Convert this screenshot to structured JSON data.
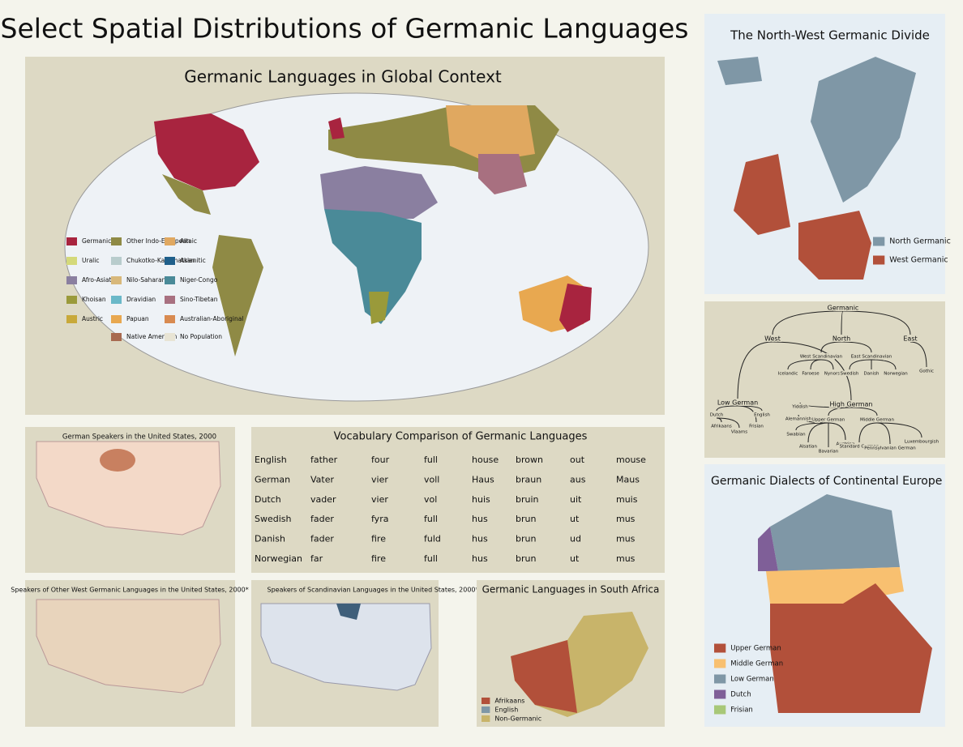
{
  "title": "Select Spatial Distributions of Germanic Languages",
  "global": {
    "title": "Germanic Languages in Global Context",
    "legend": [
      {
        "label": "Germanic",
        "color": "#a8243f"
      },
      {
        "label": "Uralic",
        "color": "#d4d97a"
      },
      {
        "label": "Afro-Asiatic",
        "color": "#8a7fa0"
      },
      {
        "label": "Khoisan",
        "color": "#9a9a3a"
      },
      {
        "label": "Austric",
        "color": "#c8a93a"
      },
      {
        "label": "Other Indo-European",
        "color": "#8f8a45"
      },
      {
        "label": "Chukotko-Kamchatkan",
        "color": "#b8cccc"
      },
      {
        "label": "Nilo-Saharan",
        "color": "#d8b87a"
      },
      {
        "label": "Dravidian",
        "color": "#6ab8c8"
      },
      {
        "label": "Papuan",
        "color": "#e8a850"
      },
      {
        "label": "Native American",
        "color": "#a86a50"
      },
      {
        "label": "Altaic",
        "color": "#e0a860"
      },
      {
        "label": "Asianitic",
        "color": "#1f5f8a"
      },
      {
        "label": "Niger-Congo",
        "color": "#4a8a98"
      },
      {
        "label": "Sino-Tibetan",
        "color": "#a87080"
      },
      {
        "label": "Australian-Aboriginal",
        "color": "#d88a50"
      },
      {
        "label": "No Population",
        "color": "#e8e4d4"
      }
    ]
  },
  "us_german": {
    "title": "German Speakers in the United States, 2000"
  },
  "us_west": {
    "title": "Speakers of Other West Germanic Languages in the United States, 2000*"
  },
  "us_scand": {
    "title": "Speakers of Scandinavian Languages in the United States, 2000*"
  },
  "vocab": {
    "title": "Vocabulary Comparison of Germanic Languages",
    "rows": [
      [
        "English",
        "father",
        "four",
        "full",
        "house",
        "brown",
        "out",
        "mouse"
      ],
      [
        "German",
        "Vater",
        "vier",
        "voll",
        "Haus",
        "braun",
        "aus",
        "Maus"
      ],
      [
        "Dutch",
        "vader",
        "vier",
        "vol",
        "huis",
        "bruin",
        "uit",
        "muis"
      ],
      [
        "Swedish",
        "fader",
        "fyra",
        "full",
        "hus",
        "brun",
        "ut",
        "mus"
      ],
      [
        "Danish",
        "fader",
        "fire",
        "fuld",
        "hus",
        "brun",
        "ud",
        "mus"
      ],
      [
        "Norwegian",
        "far",
        "fire",
        "full",
        "hus",
        "brun",
        "ut",
        "mus"
      ]
    ]
  },
  "south_africa": {
    "title": "Germanic Languages in South Africa",
    "legend": [
      {
        "label": "Afrikaans",
        "color": "#b2503a"
      },
      {
        "label": "English",
        "color": "#7f97a6"
      },
      {
        "label": "Non-Germanic",
        "color": "#c8b46a"
      }
    ]
  },
  "nw_divide": {
    "title": "The North-West Germanic Divide",
    "legend": [
      {
        "label": "North Germanic",
        "color": "#7f97a6"
      },
      {
        "label": "West Germanic",
        "color": "#b2503a"
      }
    ]
  },
  "tree": {
    "nodes": [
      "Germanic",
      "West",
      "North",
      "East",
      "West Scandinavian",
      "East Scandinavian",
      "Icelandic",
      "Faroese",
      "Nynorsk",
      "Swedish",
      "Danish",
      "Norwegian",
      "Gothic",
      "Low German",
      "Dutch",
      "English",
      "Afrikaans",
      "Vlaams",
      "Frisian",
      "High German",
      "Yiddish",
      "Upper German",
      "Middle German",
      "Alemannish",
      "Swabian",
      "Alsatian",
      "Bavarian",
      "Austrian",
      "Standard German",
      "Pennsylvanian German",
      "Luxembourgish"
    ]
  },
  "dialects": {
    "title": "Germanic Dialects of Continental Europe",
    "legend": [
      {
        "label": "Upper German",
        "color": "#b2503a"
      },
      {
        "label": "Middle German",
        "color": "#f8c070"
      },
      {
        "label": "Low German",
        "color": "#7f97a6"
      },
      {
        "label": "Dutch",
        "color": "#7f5f98"
      },
      {
        "label": "Frisian",
        "color": "#a8c878"
      }
    ]
  }
}
